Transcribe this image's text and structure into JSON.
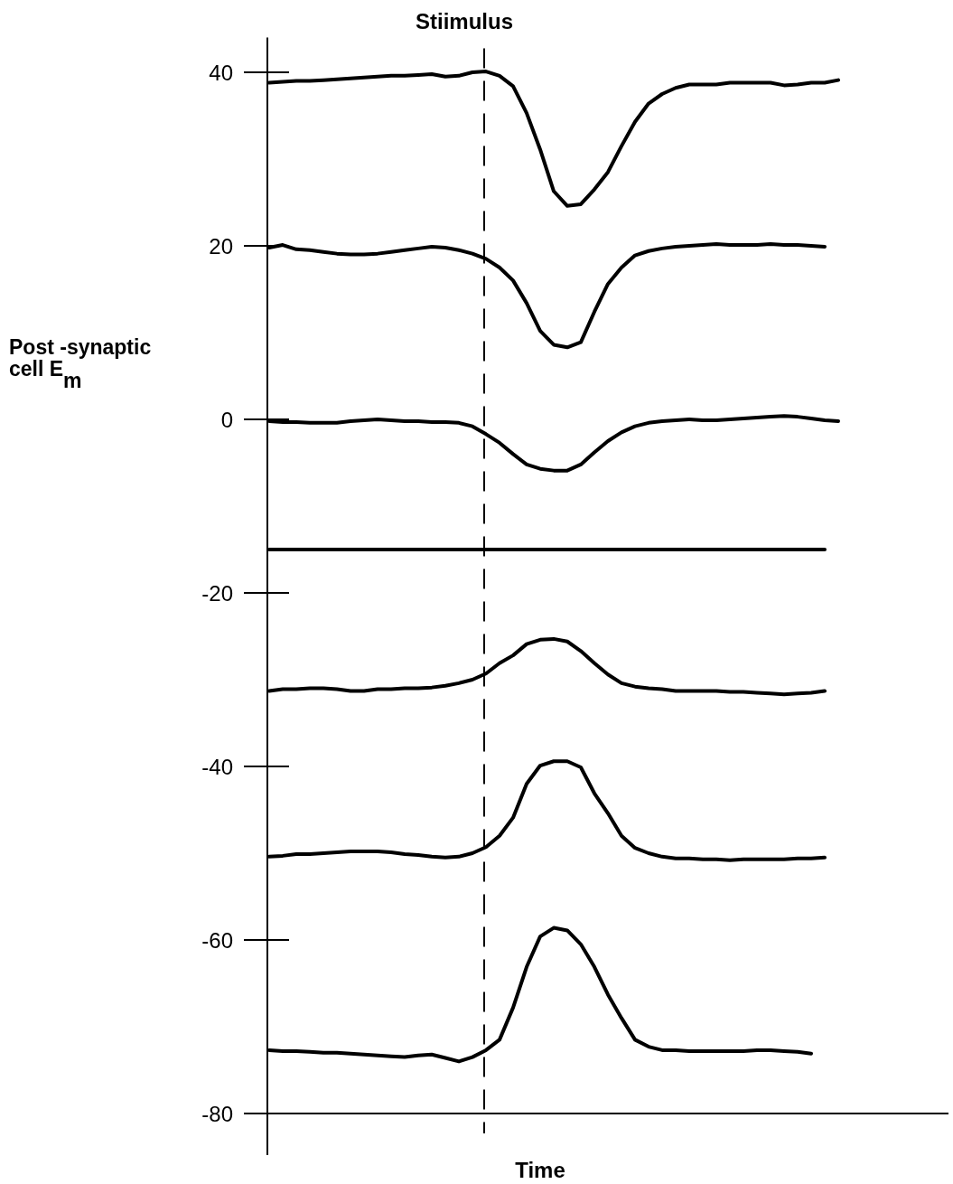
{
  "chart_data": {
    "type": "line",
    "xlabel": "Time",
    "ylabel": "Post -synaptic cell E$_{m}$",
    "ylim": [
      -80,
      44
    ],
    "yticks": [
      -80,
      -60,
      -40,
      -20,
      0,
      20,
      40
    ],
    "tick_labels": "y",
    "grid": false,
    "categories": [
      null,
      null,
      null,
      null,
      null,
      null,
      null,
      null,
      null,
      null,
      null,
      null,
      null,
      null,
      null,
      null,
      null,
      null,
      null,
      null,
      null,
      null,
      null,
      null,
      null,
      null,
      null,
      null,
      null,
      null,
      null,
      null,
      null,
      null,
      null,
      null,
      null,
      null,
      null,
      null,
      null,
      null,
      null
    ],
    "annotations": [
      "Stiimulus"
    ],
    "series": [
      {
        "color": "#000000",
        "values": [
          38.8,
          38.9,
          39.0,
          39.0,
          39.1,
          39.2,
          39.3,
          39.4,
          39.5,
          39.6,
          39.6,
          39.7,
          39.8,
          39.5,
          39.6,
          40.0,
          40.1,
          39.6,
          38.4,
          35.3,
          31.1,
          26.3,
          24.6,
          24.8,
          26.5,
          28.5,
          31.5,
          34.3,
          36.4,
          37.5,
          38.2,
          38.6,
          38.6,
          38.6,
          38.8,
          38.8,
          38.8,
          38.8,
          38.5,
          38.6,
          38.8,
          38.8,
          39.1
        ]
      },
      {
        "color": "#000000",
        "values": [
          19.8,
          20.1,
          19.6,
          19.5,
          19.3,
          19.1,
          19.0,
          19.0,
          19.1,
          19.3,
          19.5,
          19.7,
          19.9,
          19.8,
          19.5,
          19.1,
          18.5,
          17.5,
          16.0,
          13.4,
          10.2,
          8.6,
          8.3,
          8.9,
          12.4,
          15.6,
          17.5,
          18.9,
          19.4,
          19.7,
          19.9,
          20.0,
          20.1,
          20.2,
          20.1,
          20.1,
          20.1,
          20.2,
          20.1,
          20.1,
          20.0,
          19.9,
          null
        ]
      },
      {
        "color": "#000000",
        "values": [
          -0.2,
          -0.3,
          -0.3,
          -0.4,
          -0.4,
          -0.4,
          -0.2,
          -0.1,
          0,
          -0.1,
          -0.2,
          -0.2,
          -0.3,
          -0.3,
          -0.4,
          -0.8,
          -1.7,
          -2.7,
          -4.0,
          -5.2,
          -5.7,
          -5.9,
          -5.9,
          -5.2,
          -3.8,
          -2.5,
          -1.5,
          -0.8,
          -0.4,
          -0.2,
          -0.1,
          0,
          -0.1,
          -0.1,
          0,
          0.1,
          0.2,
          0.3,
          0.4,
          0.3,
          0.1,
          -0.1,
          -0.2
        ]
      },
      {
        "color": "#000000",
        "values": [
          -15,
          -15,
          -15,
          -15,
          -15,
          -15,
          -15,
          -15,
          -15,
          -15,
          -15,
          -15,
          -15,
          -15,
          -15,
          -15,
          -15,
          -15,
          -15,
          -15,
          -15,
          -15,
          -15,
          -15,
          -15,
          -15,
          -15,
          -15,
          -15,
          -15,
          -15,
          -15,
          -15,
          -15,
          -15,
          -15,
          -15,
          -15,
          -15,
          -15,
          -15,
          -15,
          null
        ]
      },
      {
        "color": "#000000",
        "values": [
          -31.3,
          -31.1,
          -31.1,
          -31.0,
          -31.0,
          -31.1,
          -31.3,
          -31.3,
          -31.1,
          -31.1,
          -31.0,
          -31.0,
          -30.9,
          -30.7,
          -30.4,
          -30.0,
          -29.3,
          -28.1,
          -27.2,
          -25.9,
          -25.4,
          -25.3,
          -25.6,
          -26.7,
          -28.1,
          -29.4,
          -30.4,
          -30.8,
          -31.0,
          -31.1,
          -31.3,
          -31.3,
          -31.3,
          -31.3,
          -31.4,
          -31.4,
          -31.5,
          -31.6,
          -31.7,
          -31.6,
          -31.5,
          -31.3,
          null
        ]
      },
      {
        "color": "#000000",
        "values": [
          -50.4,
          -50.3,
          -50.1,
          -50.1,
          -50.0,
          -49.9,
          -49.8,
          -49.8,
          -49.8,
          -49.9,
          -50.1,
          -50.2,
          -50.4,
          -50.5,
          -50.4,
          -50.0,
          -49.3,
          -48.0,
          -45.9,
          -42.0,
          -39.9,
          -39.4,
          -39.4,
          -40.1,
          -43.1,
          -45.4,
          -48.0,
          -49.4,
          -50.0,
          -50.4,
          -50.6,
          -50.6,
          -50.7,
          -50.7,
          -50.8,
          -50.7,
          -50.7,
          -50.7,
          -50.7,
          -50.6,
          -50.6,
          -50.5,
          null
        ]
      },
      {
        "color": "#000000",
        "values": [
          -72.7,
          -72.8,
          -72.8,
          -72.9,
          -73.0,
          -73.0,
          -73.1,
          -73.2,
          -73.3,
          -73.4,
          -73.5,
          -73.3,
          -73.2,
          -73.6,
          -74.0,
          -73.5,
          -72.7,
          -71.5,
          -67.8,
          -63.1,
          -59.6,
          -58.6,
          -58.9,
          -60.5,
          -63.1,
          -66.3,
          -69.0,
          -71.5,
          -72.3,
          -72.7,
          -72.7,
          -72.8,
          -72.8,
          -72.8,
          -72.8,
          -72.8,
          -72.7,
          -72.7,
          -72.8,
          -72.9,
          -73.1,
          null,
          null
        ]
      }
    ]
  }
}
